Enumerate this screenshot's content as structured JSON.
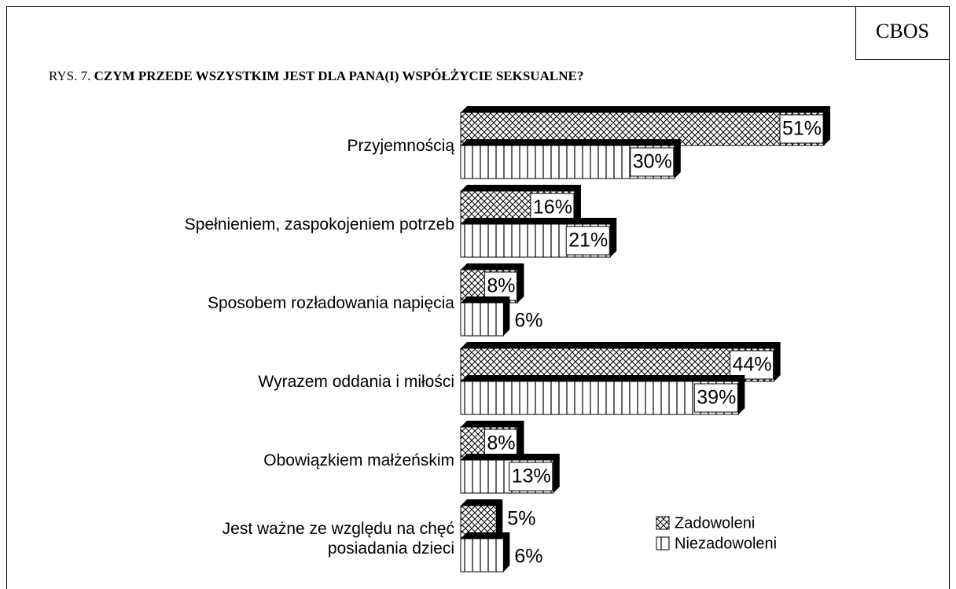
{
  "chart_data": {
    "type": "bar",
    "orientation": "horizontal",
    "source": "CBOS",
    "figure_label": "RYS. 7.",
    "title": "CZYM PRZEDE WSZYSTKIM JEST DLA PANA(I) WSPÓŁŻYCIE SEKSUALNE?",
    "categories": [
      "Przyjemnością",
      "Spełnieniem, zaspokojeniem potrzeb",
      "Sposobem rozładowania napięcia",
      "Wyrazem oddania i miłości",
      "Obowiązkiem małżeńskim",
      "Jest ważne ze względu na chęć\nposiadania dzieci"
    ],
    "series": [
      {
        "name": "Zadowoleni",
        "color": "#000000",
        "pattern": "crosshatch",
        "values": [
          51,
          16,
          8,
          44,
          8,
          5
        ],
        "value_labels": [
          "51%",
          "16%",
          "8%",
          "44%",
          "8%",
          "5%"
        ]
      },
      {
        "name": "Niezadowoleni",
        "color": "#000000",
        "pattern": "vertical",
        "values": [
          30,
          21,
          6,
          39,
          13,
          6
        ],
        "value_labels": [
          "30%",
          "21%",
          "6%",
          "39%",
          "13%",
          "6%"
        ]
      }
    ]
  }
}
